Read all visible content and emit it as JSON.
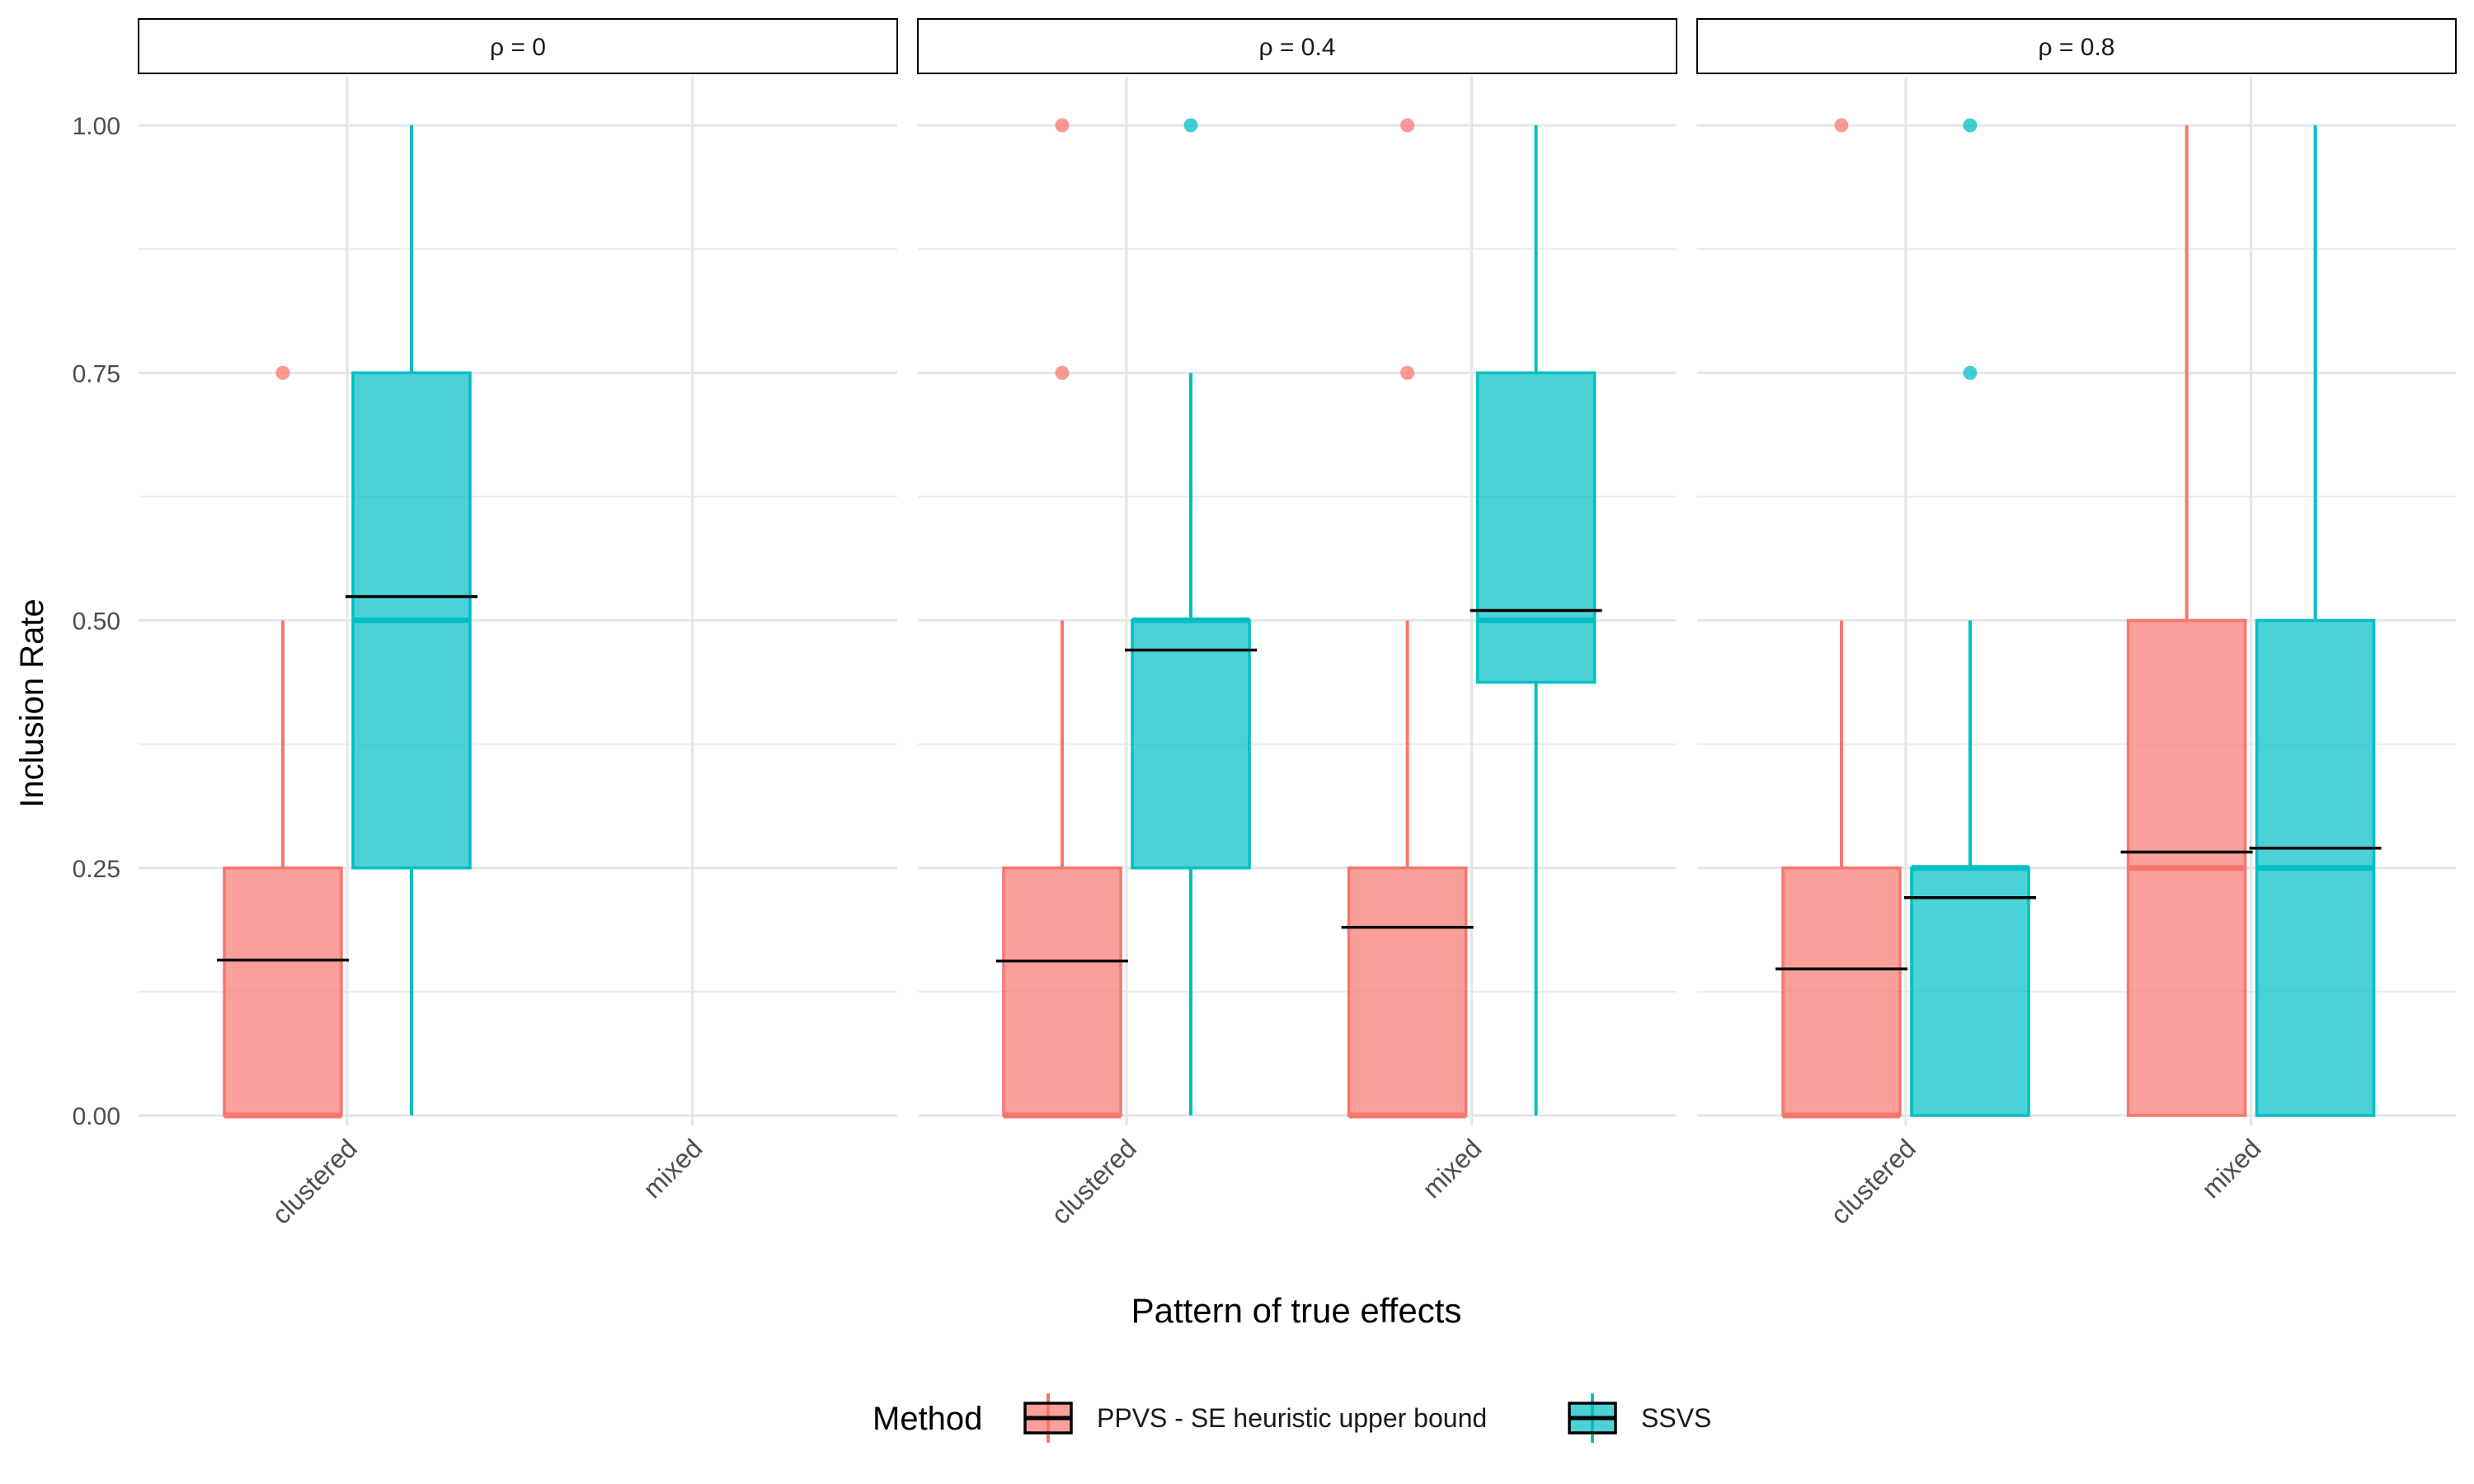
{
  "chart_data": {
    "type": "boxplot",
    "xlabel": "Pattern of true effects",
    "ylabel": "Inclusion Rate",
    "ylim": [
      0,
      1
    ],
    "y_ticks": [
      "0.00",
      "0.25",
      "0.50",
      "0.75",
      "1.00"
    ],
    "categories": [
      "clustered",
      "mixed"
    ],
    "legend": {
      "title": "Method",
      "position": "bottom",
      "entries": [
        {
          "name": "PPVS - SE heuristic upper bound",
          "fill": "#F8766D",
          "line": "#F8766D"
        },
        {
          "name": "SSVS",
          "fill": "#00BFC4",
          "line": "#00BFC4"
        }
      ]
    },
    "panels": [
      {
        "title": "ρ = 0",
        "boxes": [
          {
            "category": "clustered",
            "method": "PPVS - SE heuristic upper bound",
            "min": 0,
            "q1": 0,
            "median": 0,
            "q3": 0.25,
            "max": 0.5,
            "mean": 0.157,
            "outliers": [
              0.75
            ]
          },
          {
            "category": "clustered",
            "method": "SSVS",
            "min": 0,
            "q1": 0.25,
            "median": 0.5,
            "q3": 0.75,
            "max": 1.0,
            "mean": 0.524,
            "outliers": []
          }
        ]
      },
      {
        "title": "ρ = 0.4",
        "boxes": [
          {
            "category": "clustered",
            "method": "PPVS - SE heuristic upper bound",
            "min": 0,
            "q1": 0,
            "median": 0,
            "q3": 0.25,
            "max": 0.5,
            "mean": 0.156,
            "outliers": [
              0.75,
              1.0
            ]
          },
          {
            "category": "clustered",
            "method": "SSVS",
            "min": 0,
            "q1": 0.25,
            "median": 0.5,
            "q3": 0.5,
            "max": 0.75,
            "mean": 0.47,
            "outliers": [
              1.0
            ]
          },
          {
            "category": "mixed",
            "method": "PPVS - SE heuristic upper bound",
            "min": 0,
            "q1": 0,
            "median": 0,
            "q3": 0.25,
            "max": 0.5,
            "mean": 0.19,
            "outliers": [
              0.75,
              1.0
            ]
          },
          {
            "category": "mixed",
            "method": "SSVS",
            "min": 0,
            "q1": 0.4375,
            "median": 0.5,
            "q3": 0.75,
            "max": 1.0,
            "mean": 0.51,
            "outliers": []
          }
        ]
      },
      {
        "title": "ρ = 0.8",
        "boxes": [
          {
            "category": "clustered",
            "method": "PPVS - SE heuristic upper bound",
            "min": 0,
            "q1": 0,
            "median": 0,
            "q3": 0.25,
            "max": 0.5,
            "mean": 0.148,
            "outliers": [
              1.0
            ]
          },
          {
            "category": "clustered",
            "method": "SSVS",
            "min": 0,
            "q1": 0,
            "median": 0.25,
            "q3": 0.25,
            "max": 0.5,
            "mean": 0.22,
            "outliers": [
              0.75,
              1.0
            ]
          },
          {
            "category": "mixed",
            "method": "PPVS - SE heuristic upper bound",
            "min": 0,
            "q1": 0,
            "median": 0.25,
            "q3": 0.5,
            "max": 1.0,
            "mean": 0.266,
            "outliers": []
          },
          {
            "category": "mixed",
            "method": "SSVS",
            "min": 0,
            "q1": 0,
            "median": 0.25,
            "q3": 0.5,
            "max": 1.0,
            "mean": 0.27,
            "outliers": []
          }
        ]
      }
    ]
  }
}
